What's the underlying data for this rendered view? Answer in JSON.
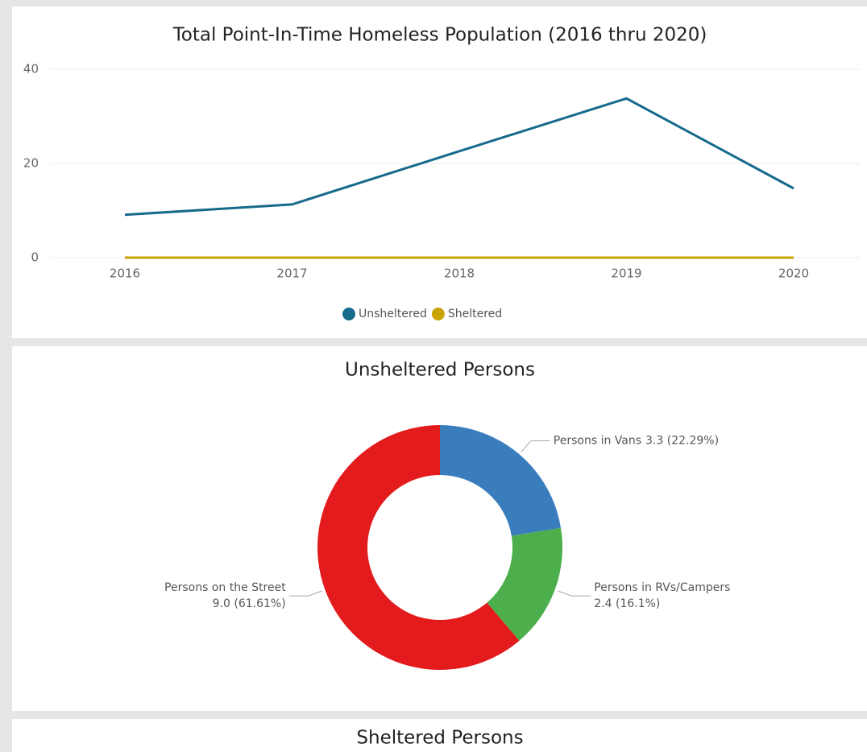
{
  "chart_data": [
    {
      "type": "line",
      "title": "Total Point-In-Time Homeless Population (2016 thru 2020)",
      "categories": [
        "2016",
        "2017",
        "2018",
        "2019",
        "2020"
      ],
      "series": [
        {
          "name": "Unsheltered",
          "color": "#166a8c",
          "values": [
            9.1,
            11.3,
            22.6,
            33.8,
            14.7
          ]
        },
        {
          "name": "Sheltered",
          "color": "#c9a300",
          "values": [
            0,
            0,
            0,
            0,
            0
          ]
        }
      ],
      "ylim": [
        0,
        40
      ],
      "yticks": [
        0,
        20,
        40
      ],
      "grid": true,
      "legend": "bottom"
    },
    {
      "type": "donut",
      "title": "Unsheltered Persons",
      "categories": [
        "Persons in Vans",
        "Persons in RVs/Campers",
        "Persons on the Street"
      ],
      "values": [
        3.3,
        2.4,
        9.0
      ],
      "value_labels": [
        "3.3 (22.29%)",
        "2.4 (16.1%)",
        "9.0 (61.61%)"
      ],
      "colors": [
        "#3a7dbd",
        "#4caf4c",
        "#e31b1d"
      ]
    }
  ],
  "sheltered_panel": {
    "title": "Sheltered Persons"
  }
}
